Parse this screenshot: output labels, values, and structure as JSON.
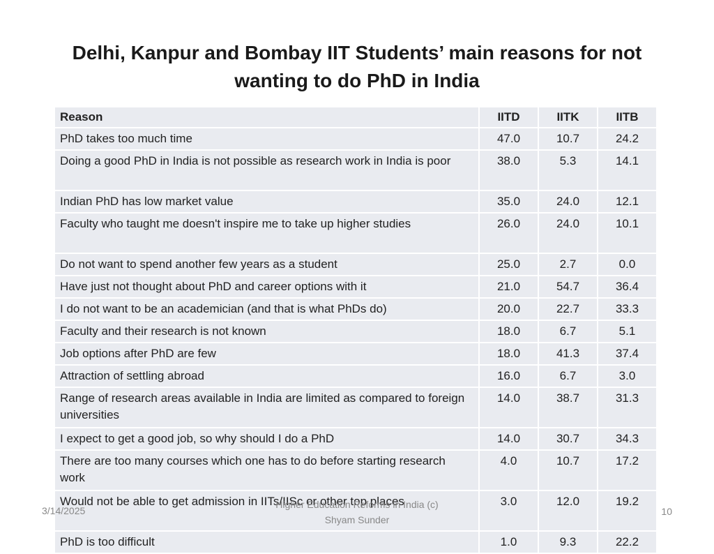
{
  "title": "Delhi, Kanpur and Bombay IIT Students’ main reasons for not wanting to do PhD in India",
  "table": {
    "headers": [
      "Reason",
      "IITD",
      "IITK",
      "IITB"
    ],
    "rows": [
      {
        "reason": "PhD takes too much time",
        "iitd": "47.0",
        "iitk": "10.7",
        "iitb": "24.2"
      },
      {
        "reason": "Doing a good PhD in India is not possible as research work in India is poor",
        "iitd": "38.0",
        "iitk": "5.3",
        "iitb": "14.1"
      },
      {
        "reason": "Indian PhD has low market value",
        "iitd": "35.0",
        "iitk": "24.0",
        "iitb": "12.1"
      },
      {
        "reason": "Faculty who taught me doesn't inspire me to take up higher studies",
        "iitd": "26.0",
        "iitk": "24.0",
        "iitb": "10.1"
      },
      {
        "reason": "Do not want to spend another few years as a student",
        "iitd": "25.0",
        "iitk": "2.7",
        "iitb": "0.0"
      },
      {
        "reason": "Have just not thought about PhD and career options with it",
        "iitd": "21.0",
        "iitk": "54.7",
        "iitb": "36.4"
      },
      {
        "reason": "I do not want to be an academician (and that is what PhDs do)",
        "iitd": "20.0",
        "iitk": "22.7",
        "iitb": "33.3"
      },
      {
        "reason": "Faculty and their research is not known",
        "iitd": "18.0",
        "iitk": "6.7",
        "iitb": "5.1"
      },
      {
        "reason": "Job options after PhD are few",
        "iitd": "18.0",
        "iitk": "41.3",
        "iitb": "37.4"
      },
      {
        "reason": "Attraction of settling abroad",
        "iitd": "16.0",
        "iitk": "6.7",
        "iitb": "3.0"
      },
      {
        "reason": "Range of research areas available in India are limited as compared to foreign universities",
        "iitd": "14.0",
        "iitk": "38.7",
        "iitb": "31.3"
      },
      {
        "reason": "I expect to get a good job, so why should I do a PhD",
        "iitd": "14.0",
        "iitk": "30.7",
        "iitb": "34.3"
      },
      {
        "reason": "There are too many courses which one has to do before starting research work",
        "iitd": "4.0",
        "iitk": "10.7",
        "iitb": "17.2"
      },
      {
        "reason": "Would not be able to get admission in IITs/IISc or other top places",
        "iitd": "3.0",
        "iitk": "12.0",
        "iitb": "19.2"
      },
      {
        "reason": "PhD is too difficult",
        "iitd": "1.0",
        "iitk": "9.3",
        "iitb": "22.2"
      }
    ]
  },
  "footer": {
    "date": "3/14/2025",
    "center_line1": "Higher Education Reforms in India (c)",
    "center_line2": "Shyam Sunder",
    "page_number": "10"
  }
}
